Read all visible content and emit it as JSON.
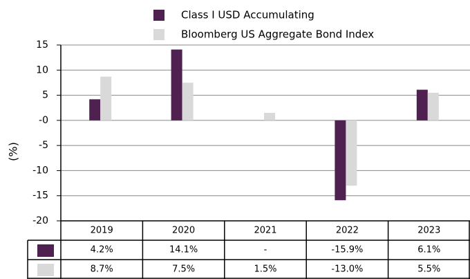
{
  "chart_data": {
    "type": "bar",
    "categories": [
      "2019",
      "2020",
      "2021",
      "2022",
      "2023"
    ],
    "series": [
      {
        "name": "Class I USD Accumulating",
        "color": "#4e2150",
        "values": [
          4.2,
          14.1,
          null,
          -15.9,
          6.1
        ],
        "value_labels": [
          "4.2%",
          "14.1%",
          "-",
          "-15.9%",
          "6.1%"
        ]
      },
      {
        "name": "Bloomberg US Aggregate Bond Index",
        "color": "#d9d9d9",
        "values": [
          8.7,
          7.5,
          1.5,
          -13.0,
          5.5
        ],
        "value_labels": [
          "8.7%",
          "7.5%",
          "1.5%",
          "-13.0%",
          "5.5%"
        ]
      }
    ],
    "y_label": "(%)",
    "ylim": [
      -20,
      15
    ],
    "yticks": [
      15,
      10,
      5,
      {
        "value": 0,
        "label": "-0"
      },
      -5,
      -10,
      -15,
      -20
    ],
    "grid": true
  }
}
